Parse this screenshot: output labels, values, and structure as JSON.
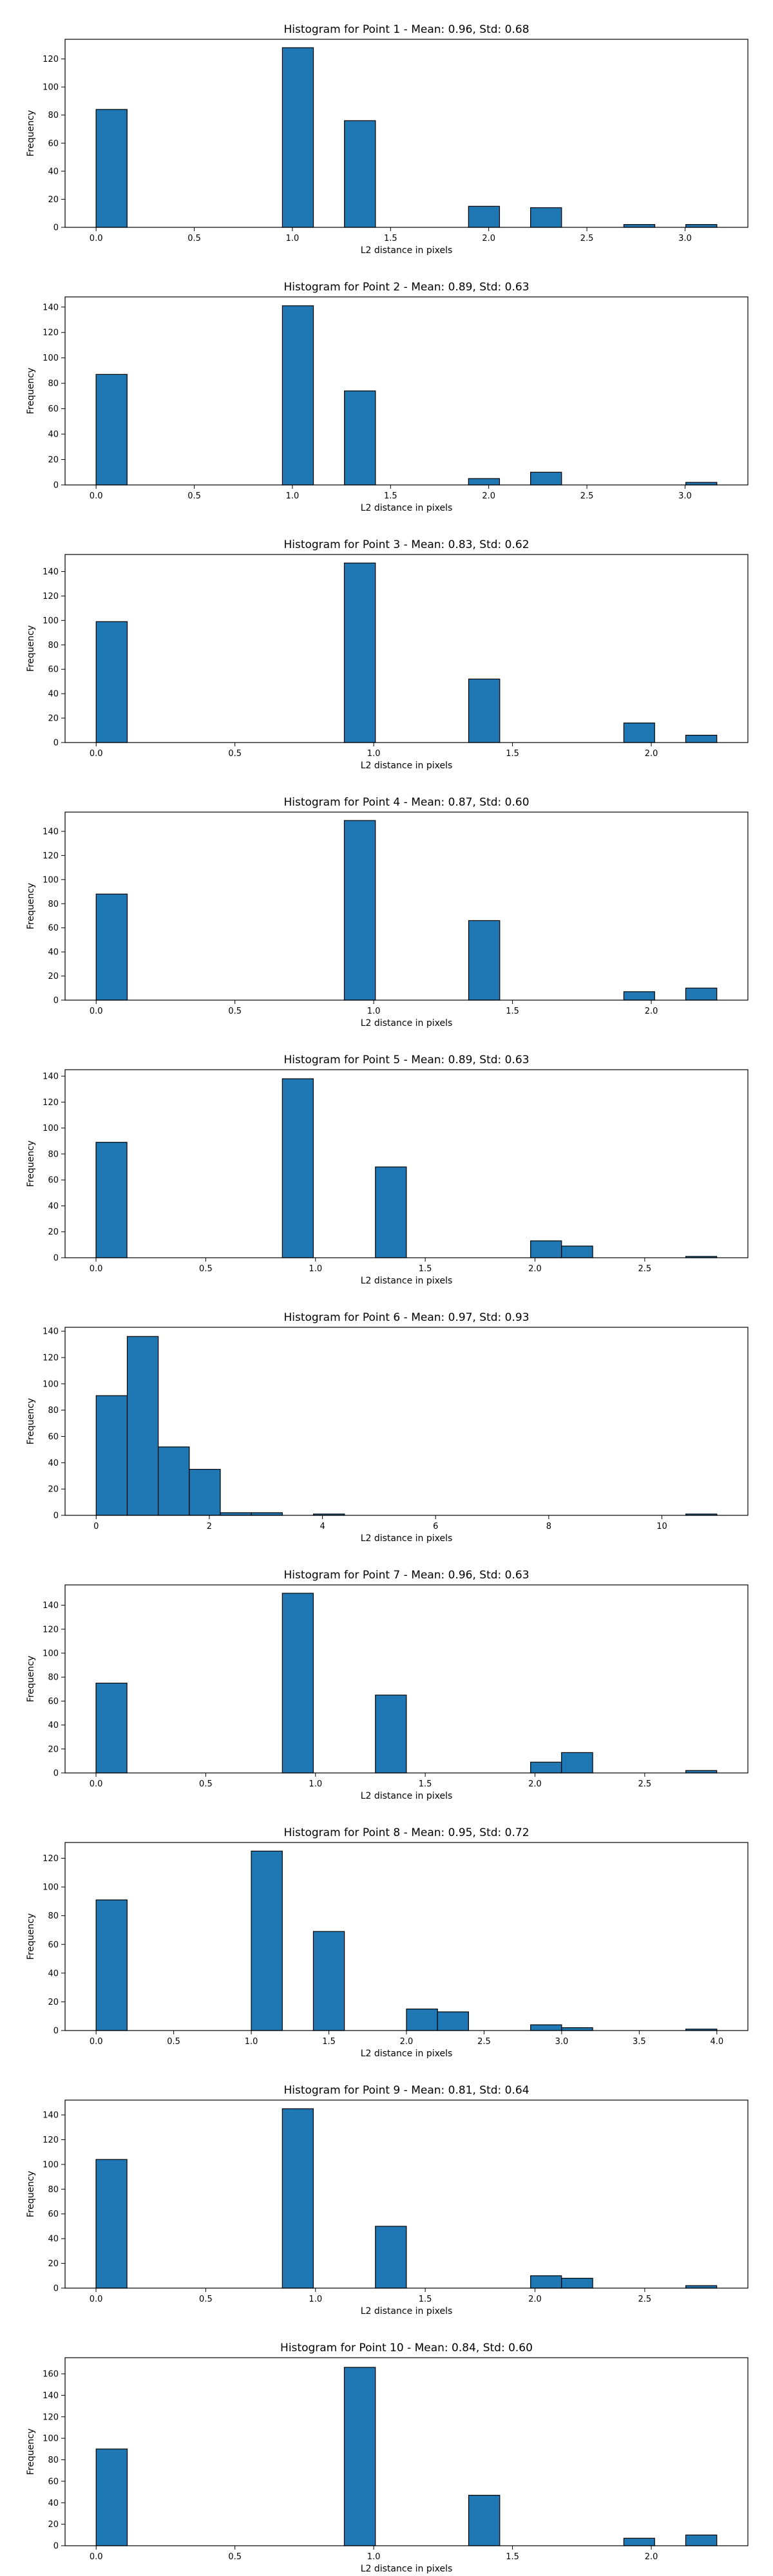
{
  "chart_data": [
    {
      "type": "bar",
      "title": "Histogram for Point 1 - Mean: 0.96, Std: 0.68",
      "xlabel": "L2 distance in pixels",
      "ylabel": "Frequency",
      "xlim": [
        -0.158,
        3.32
      ],
      "ylim": [
        0,
        134
      ],
      "xticks": [
        0.0,
        0.5,
        1.0,
        1.5,
        2.0,
        2.5,
        3.0
      ],
      "xtick_labels": [
        "0.0",
        "0.5",
        "1.0",
        "1.5",
        "2.0",
        "2.5",
        "3.0"
      ],
      "yticks": [
        0,
        20,
        40,
        60,
        80,
        100,
        120
      ],
      "bins": [
        {
          "x0": 0.0,
          "x1": 0.158,
          "count": 84
        },
        {
          "x0": 0.949,
          "x1": 1.107,
          "count": 128
        },
        {
          "x0": 1.265,
          "x1": 1.423,
          "count": 76
        },
        {
          "x0": 1.897,
          "x1": 2.055,
          "count": 15
        },
        {
          "x0": 2.213,
          "x1": 2.371,
          "count": 14
        },
        {
          "x0": 2.688,
          "x1": 2.846,
          "count": 2
        },
        {
          "x0": 3.004,
          "x1": 3.162,
          "count": 2
        }
      ],
      "grid": false
    },
    {
      "type": "bar",
      "title": "Histogram for Point 2 - Mean: 0.89, Std: 0.63",
      "xlabel": "L2 distance in pixels",
      "ylabel": "Frequency",
      "xlim": [
        -0.158,
        3.32
      ],
      "ylim": [
        0,
        148
      ],
      "xticks": [
        0.0,
        0.5,
        1.0,
        1.5,
        2.0,
        2.5,
        3.0
      ],
      "xtick_labels": [
        "0.0",
        "0.5",
        "1.0",
        "1.5",
        "2.0",
        "2.5",
        "3.0"
      ],
      "yticks": [
        0,
        20,
        40,
        60,
        80,
        100,
        120,
        140
      ],
      "bins": [
        {
          "x0": 0.0,
          "x1": 0.158,
          "count": 87
        },
        {
          "x0": 0.949,
          "x1": 1.107,
          "count": 141
        },
        {
          "x0": 1.265,
          "x1": 1.423,
          "count": 74
        },
        {
          "x0": 1.897,
          "x1": 2.055,
          "count": 5
        },
        {
          "x0": 2.213,
          "x1": 2.371,
          "count": 10
        },
        {
          "x0": 3.004,
          "x1": 3.162,
          "count": 2
        }
      ],
      "grid": false
    },
    {
      "type": "bar",
      "title": "Histogram for Point 3 - Mean: 0.83, Std: 0.62",
      "xlabel": "L2 distance in pixels",
      "ylabel": "Frequency",
      "xlim": [
        -0.112,
        2.348
      ],
      "ylim": [
        0,
        154
      ],
      "xticks": [
        0.0,
        0.5,
        1.0,
        1.5,
        2.0
      ],
      "xtick_labels": [
        "0.0",
        "0.5",
        "1.0",
        "1.5",
        "2.0"
      ],
      "yticks": [
        0,
        20,
        40,
        60,
        80,
        100,
        120,
        140
      ],
      "bins": [
        {
          "x0": 0.0,
          "x1": 0.112,
          "count": 99
        },
        {
          "x0": 0.894,
          "x1": 1.006,
          "count": 147
        },
        {
          "x0": 1.342,
          "x1": 1.454,
          "count": 52
        },
        {
          "x0": 1.901,
          "x1": 2.012,
          "count": 16
        },
        {
          "x0": 2.124,
          "x1": 2.236,
          "count": 6
        }
      ],
      "grid": false
    },
    {
      "type": "bar",
      "title": "Histogram for Point 4 - Mean: 0.87, Std: 0.60",
      "xlabel": "L2 distance in pixels",
      "ylabel": "Frequency",
      "xlim": [
        -0.112,
        2.348
      ],
      "ylim": [
        0,
        156
      ],
      "xticks": [
        0.0,
        0.5,
        1.0,
        1.5,
        2.0
      ],
      "xtick_labels": [
        "0.0",
        "0.5",
        "1.0",
        "1.5",
        "2.0"
      ],
      "yticks": [
        0,
        20,
        40,
        60,
        80,
        100,
        120,
        140
      ],
      "bins": [
        {
          "x0": 0.0,
          "x1": 0.112,
          "count": 88
        },
        {
          "x0": 0.894,
          "x1": 1.006,
          "count": 149
        },
        {
          "x0": 1.342,
          "x1": 1.454,
          "count": 66
        },
        {
          "x0": 1.901,
          "x1": 2.012,
          "count": 7
        },
        {
          "x0": 2.124,
          "x1": 2.236,
          "count": 10
        }
      ],
      "grid": false
    },
    {
      "type": "bar",
      "title": "Histogram for Point 5 - Mean: 0.89, Std: 0.63",
      "xlabel": "L2 distance in pixels",
      "ylabel": "Frequency",
      "xlim": [
        -0.141,
        2.97
      ],
      "ylim": [
        0,
        145
      ],
      "xticks": [
        0.0,
        0.5,
        1.0,
        1.5,
        2.0,
        2.5
      ],
      "xtick_labels": [
        "0.0",
        "0.5",
        "1.0",
        "1.5",
        "2.0",
        "2.5"
      ],
      "yticks": [
        0,
        20,
        40,
        60,
        80,
        100,
        120,
        140
      ],
      "bins": [
        {
          "x0": 0.0,
          "x1": 0.141,
          "count": 89
        },
        {
          "x0": 0.849,
          "x1": 0.99,
          "count": 138
        },
        {
          "x0": 1.273,
          "x1": 1.414,
          "count": 70
        },
        {
          "x0": 1.98,
          "x1": 2.121,
          "count": 13
        },
        {
          "x0": 2.121,
          "x1": 2.263,
          "count": 9
        },
        {
          "x0": 2.687,
          "x1": 2.828,
          "count": 1
        }
      ],
      "grid": false
    },
    {
      "type": "bar",
      "title": "Histogram for Point 6 - Mean: 0.97, Std: 0.93",
      "xlabel": "L2 distance in pixels",
      "ylabel": "Frequency",
      "xlim": [
        -0.55,
        11.52
      ],
      "ylim": [
        0,
        143
      ],
      "xticks": [
        0,
        2,
        4,
        6,
        8,
        10
      ],
      "xtick_labels": [
        "0",
        "2",
        "4",
        "6",
        "8",
        "10"
      ],
      "yticks": [
        0,
        20,
        40,
        60,
        80,
        100,
        120,
        140
      ],
      "bins": [
        {
          "x0": 0.0,
          "x1": 0.549,
          "count": 91
        },
        {
          "x0": 0.549,
          "x1": 1.097,
          "count": 136
        },
        {
          "x0": 1.097,
          "x1": 1.646,
          "count": 52
        },
        {
          "x0": 1.646,
          "x1": 2.194,
          "count": 35
        },
        {
          "x0": 2.194,
          "x1": 2.743,
          "count": 2
        },
        {
          "x0": 2.743,
          "x1": 3.291,
          "count": 2
        },
        {
          "x0": 3.84,
          "x1": 4.389,
          "count": 1
        },
        {
          "x0": 10.423,
          "x1": 10.971,
          "count": 1
        }
      ],
      "grid": false
    },
    {
      "type": "bar",
      "title": "Histogram for Point 7 - Mean: 0.96, Std: 0.63",
      "xlabel": "L2 distance in pixels",
      "ylabel": "Frequency",
      "xlim": [
        -0.141,
        2.97
      ],
      "ylim": [
        0,
        157
      ],
      "xticks": [
        0.0,
        0.5,
        1.0,
        1.5,
        2.0,
        2.5
      ],
      "xtick_labels": [
        "0.0",
        "0.5",
        "1.0",
        "1.5",
        "2.0",
        "2.5"
      ],
      "yticks": [
        0,
        20,
        40,
        60,
        80,
        100,
        120,
        140
      ],
      "bins": [
        {
          "x0": 0.0,
          "x1": 0.141,
          "count": 75
        },
        {
          "x0": 0.849,
          "x1": 0.99,
          "count": 150
        },
        {
          "x0": 1.273,
          "x1": 1.414,
          "count": 65
        },
        {
          "x0": 1.98,
          "x1": 2.121,
          "count": 9
        },
        {
          "x0": 2.121,
          "x1": 2.263,
          "count": 17
        },
        {
          "x0": 2.687,
          "x1": 2.828,
          "count": 2
        }
      ],
      "grid": false
    },
    {
      "type": "bar",
      "title": "Histogram for Point 8 - Mean: 0.95, Std: 0.72",
      "xlabel": "L2 distance in pixels",
      "ylabel": "Frequency",
      "xlim": [
        -0.2,
        4.2
      ],
      "ylim": [
        0,
        131
      ],
      "xticks": [
        0.0,
        0.5,
        1.0,
        1.5,
        2.0,
        2.5,
        3.0,
        3.5,
        4.0
      ],
      "xtick_labels": [
        "0.0",
        "0.5",
        "1.0",
        "1.5",
        "2.0",
        "2.5",
        "3.0",
        "3.5",
        "4.0"
      ],
      "yticks": [
        0,
        20,
        40,
        60,
        80,
        100,
        120
      ],
      "bins": [
        {
          "x0": 0.0,
          "x1": 0.2,
          "count": 91
        },
        {
          "x0": 1.0,
          "x1": 1.2,
          "count": 125
        },
        {
          "x0": 1.4,
          "x1": 1.6,
          "count": 69
        },
        {
          "x0": 2.0,
          "x1": 2.2,
          "count": 15
        },
        {
          "x0": 2.2,
          "x1": 2.4,
          "count": 13
        },
        {
          "x0": 2.8,
          "x1": 3.0,
          "count": 4
        },
        {
          "x0": 3.0,
          "x1": 3.2,
          "count": 2
        },
        {
          "x0": 3.8,
          "x1": 4.0,
          "count": 1
        }
      ],
      "grid": false
    },
    {
      "type": "bar",
      "title": "Histogram for Point 9 - Mean: 0.81, Std: 0.64",
      "xlabel": "L2 distance in pixels",
      "ylabel": "Frequency",
      "xlim": [
        -0.141,
        2.97
      ],
      "ylim": [
        0,
        152
      ],
      "xticks": [
        0.0,
        0.5,
        1.0,
        1.5,
        2.0,
        2.5
      ],
      "xtick_labels": [
        "0.0",
        "0.5",
        "1.0",
        "1.5",
        "2.0",
        "2.5"
      ],
      "yticks": [
        0,
        20,
        40,
        60,
        80,
        100,
        120,
        140
      ],
      "bins": [
        {
          "x0": 0.0,
          "x1": 0.141,
          "count": 104
        },
        {
          "x0": 0.849,
          "x1": 0.99,
          "count": 145
        },
        {
          "x0": 1.273,
          "x1": 1.414,
          "count": 50
        },
        {
          "x0": 1.98,
          "x1": 2.121,
          "count": 10
        },
        {
          "x0": 2.121,
          "x1": 2.263,
          "count": 8
        },
        {
          "x0": 2.687,
          "x1": 2.828,
          "count": 2
        }
      ],
      "grid": false
    },
    {
      "type": "bar",
      "title": "Histogram for Point 10 - Mean: 0.84, Std: 0.60",
      "xlabel": "L2 distance in pixels",
      "ylabel": "Frequency",
      "xlim": [
        -0.112,
        2.348
      ],
      "ylim": [
        0,
        175
      ],
      "xticks": [
        0.0,
        0.5,
        1.0,
        1.5,
        2.0
      ],
      "xtick_labels": [
        "0.0",
        "0.5",
        "1.0",
        "1.5",
        "2.0"
      ],
      "yticks": [
        0,
        20,
        40,
        60,
        80,
        100,
        120,
        140,
        160
      ],
      "bins": [
        {
          "x0": 0.0,
          "x1": 0.112,
          "count": 90
        },
        {
          "x0": 0.894,
          "x1": 1.006,
          "count": 166
        },
        {
          "x0": 1.342,
          "x1": 1.454,
          "count": 47
        },
        {
          "x0": 1.901,
          "x1": 2.012,
          "count": 7
        },
        {
          "x0": 2.124,
          "x1": 2.236,
          "count": 10
        }
      ],
      "grid": false
    }
  ]
}
